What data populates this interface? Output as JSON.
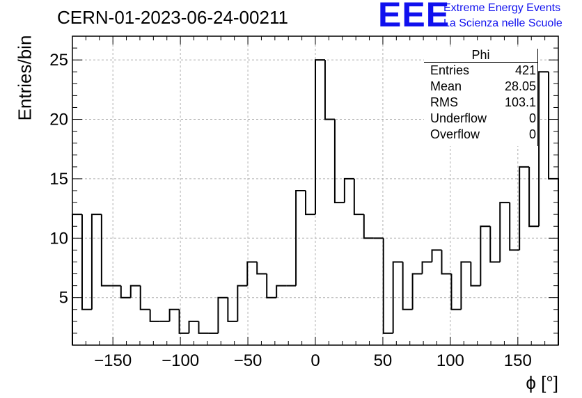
{
  "header": {
    "run_title": "CERN-01-2023-06-24-00211",
    "logo_text": "EEE",
    "logo_line1": "Extreme Energy Events",
    "logo_line2": "La Scienza nelle Scuole"
  },
  "stats_box": {
    "title": "Phi",
    "rows": [
      {
        "label": "Entries",
        "value": "421"
      },
      {
        "label": "Mean",
        "value": "28.05"
      },
      {
        "label": "RMS",
        "value": "103.1"
      },
      {
        "label": "Underflow",
        "value": "0"
      },
      {
        "label": "Overflow",
        "value": "0"
      }
    ]
  },
  "colors": {
    "histogram_line": "#000000",
    "grid": "#b0b0b0",
    "logo": "#1010ee"
  },
  "chart_data": {
    "type": "bar",
    "histogram": true,
    "title": "CERN-01-2023-06-24-00211",
    "xlabel": "ϕ [°]",
    "ylabel": "Entries/bin",
    "xlim": [
      -180,
      180
    ],
    "ylim": [
      1,
      27
    ],
    "grid": true,
    "legend": "top-right",
    "bin_width": 7.2,
    "x_ticks": [
      -150,
      -100,
      -50,
      0,
      50,
      100,
      150
    ],
    "x_tick_labels": [
      "−150",
      "−100",
      "−50",
      "0",
      "50",
      "100",
      "150"
    ],
    "y_ticks": [
      5,
      10,
      15,
      20,
      25
    ],
    "y_tick_labels": [
      "5",
      "10",
      "15",
      "20",
      "25"
    ],
    "series": [
      {
        "values": [
          12,
          4,
          12,
          6,
          6,
          5,
          6,
          4,
          3,
          3,
          4,
          2,
          3,
          2,
          2,
          5,
          3,
          6,
          8,
          7,
          5,
          6,
          6,
          14,
          12,
          25,
          20,
          13,
          15,
          12,
          10,
          10,
          2,
          8,
          4,
          7,
          8,
          9,
          7,
          4,
          8,
          6,
          11,
          8,
          13,
          9,
          16,
          11,
          24,
          15
        ]
      }
    ]
  }
}
